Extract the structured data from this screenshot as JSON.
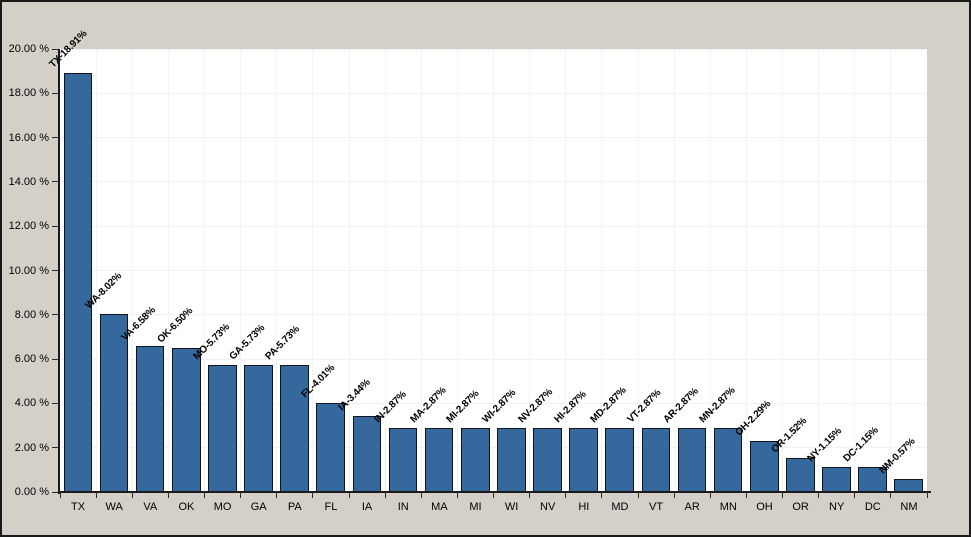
{
  "window": {
    "background_color": "#D4D0C8",
    "border_color": "#1a1a1a",
    "plot_background_color": "#FFFFFF"
  },
  "chart_data": {
    "type": "bar",
    "title": "",
    "xlabel": "",
    "ylabel": "",
    "categories": [
      "TX",
      "WA",
      "VA",
      "OK",
      "MO",
      "GA",
      "PA",
      "FL",
      "IA",
      "IN",
      "MA",
      "MI",
      "WI",
      "NV",
      "HI",
      "MD",
      "VT",
      "AR",
      "MN",
      "OH",
      "OR",
      "NY",
      "DC",
      "NM"
    ],
    "values": [
      18.91,
      8.02,
      6.58,
      6.5,
      5.73,
      5.73,
      5.73,
      4.01,
      3.44,
      2.87,
      2.87,
      2.87,
      2.87,
      2.87,
      2.87,
      2.87,
      2.87,
      2.87,
      2.87,
      2.29,
      1.52,
      1.15,
      1.15,
      0.57
    ],
    "bar_labels": [
      "TX-18.91%",
      "WA-8.02%",
      "VA-6.58%",
      "OK-6.50%",
      "MO-5.73%",
      "GA-5.73%",
      "PA-5.73%",
      "FL-4.01%",
      "IA-3.44%",
      "IN-2.87%",
      "MA-2.87%",
      "MI-2.87%",
      "WI-2.87%",
      "NV-2.87%",
      "HI-2.87%",
      "MD-2.87%",
      "VT-2.87%",
      "AR-2.87%",
      "MN-2.87%",
      "OH-2.29%",
      "OR-1.52%",
      "NY-1.15%",
      "DC-1.15%",
      "NM-0.57%"
    ],
    "ylim": [
      0,
      20
    ],
    "ytick_step": 2,
    "ytick_labels": [
      "0.00 %",
      "2.00 %",
      "4.00 %",
      "6.00 %",
      "8.00 %",
      "10.00 %",
      "12.00 %",
      "14.00 %",
      "16.00 %",
      "18.00 %",
      "20.00 %"
    ],
    "grid": true,
    "legend_position": "none",
    "bar_color": "#35699E",
    "bar_border_color": "#10151c",
    "gridline_color": "#f3f1f1",
    "label_rotation_deg": -45
  }
}
